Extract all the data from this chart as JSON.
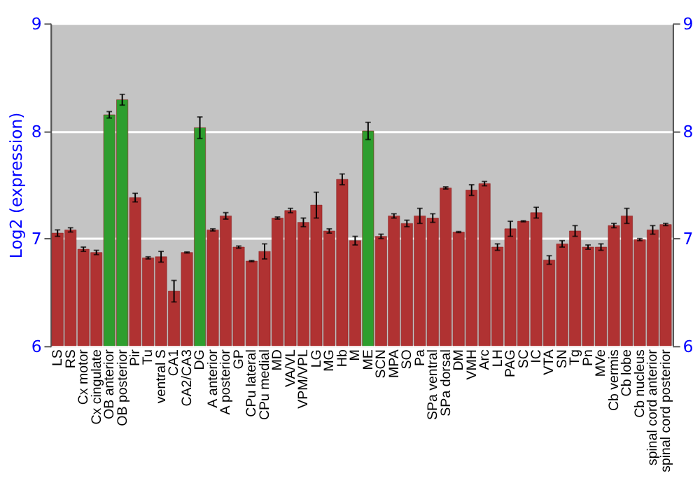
{
  "chart_data": {
    "type": "bar",
    "ylabel": "Log2 (expression)",
    "categories": [
      "LS",
      "RS",
      "Cx motor",
      "Cx cingulate",
      "OB anterior",
      "OB posterior",
      "Pir",
      "Tu",
      "ventral S",
      "CA1",
      "CA2/CA3",
      "DG",
      "A anterior",
      "A posterior",
      "GP",
      "CPu lateral",
      "CPu medial",
      "MD",
      "VA/VL",
      "VPM/VPL",
      "LG",
      "MG",
      "Hb",
      "M",
      "ME",
      "SCN",
      "MPA",
      "SO",
      "Pa",
      "SPa ventral",
      "SPa dorsal",
      "DM",
      "VMH",
      "Arc",
      "LH",
      "PAG",
      "SC",
      "IC",
      "VTA",
      "SN",
      "Tg",
      "Pn",
      "MVe",
      "Cb vermis",
      "Cb lobe",
      "Cb nucleus",
      "spinal cord anterior",
      "spinal cord posterior"
    ],
    "values": [
      7.05,
      7.08,
      6.9,
      6.87,
      8.15,
      8.29,
      7.38,
      6.82,
      6.83,
      6.51,
      6.87,
      8.03,
      7.08,
      7.21,
      6.92,
      6.79,
      6.88,
      7.19,
      7.26,
      7.15,
      7.31,
      7.07,
      7.55,
      6.98,
      8.0,
      7.02,
      7.21,
      7.14,
      7.21,
      7.19,
      7.47,
      7.06,
      7.45,
      7.51,
      6.92,
      7.09,
      7.16,
      7.24,
      6.8,
      6.95,
      7.07,
      6.92,
      6.92,
      7.12,
      7.21,
      6.99,
      7.08,
      7.13
    ],
    "errors": [
      0.03,
      0.02,
      0.02,
      0.02,
      0.03,
      0.05,
      0.04,
      0.01,
      0.05,
      0.1,
      0.005,
      0.1,
      0.01,
      0.03,
      0.01,
      0.005,
      0.07,
      0.01,
      0.02,
      0.04,
      0.12,
      0.02,
      0.05,
      0.04,
      0.08,
      0.02,
      0.02,
      0.03,
      0.07,
      0.04,
      0.01,
      0.005,
      0.05,
      0.02,
      0.03,
      0.07,
      0.005,
      0.05,
      0.04,
      0.03,
      0.05,
      0.02,
      0.03,
      0.02,
      0.07,
      0.01,
      0.04,
      0.01
    ],
    "colors": [
      "#b03232",
      "#b03232",
      "#b03232",
      "#b03232",
      "#2e9e2e",
      "#2e9e2e",
      "#b03232",
      "#b03232",
      "#b03232",
      "#b03232",
      "#b03232",
      "#2e9e2e",
      "#b03232",
      "#b03232",
      "#b03232",
      "#b03232",
      "#b03232",
      "#b03232",
      "#b03232",
      "#b03232",
      "#b03232",
      "#b03232",
      "#b03232",
      "#b03232",
      "#2e9e2e",
      "#b03232",
      "#b03232",
      "#b03232",
      "#b03232",
      "#b03232",
      "#b03232",
      "#b03232",
      "#b03232",
      "#b03232",
      "#b03232",
      "#b03232",
      "#b03232",
      "#b03232",
      "#b03232",
      "#b03232",
      "#b03232",
      "#b03232",
      "#b03232",
      "#b03232",
      "#b03232",
      "#b03232",
      "#b03232",
      "#b03232"
    ],
    "ylim": [
      6,
      9
    ],
    "yticks": [
      6,
      7,
      8,
      9
    ],
    "y2lim": [
      6,
      9
    ],
    "y2ticks": [
      6,
      7,
      8,
      9
    ],
    "grid": "y"
  }
}
